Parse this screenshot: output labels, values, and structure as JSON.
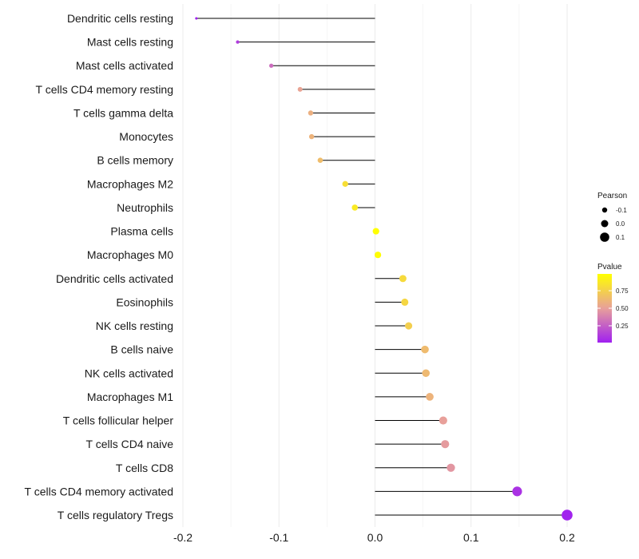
{
  "chart_data": {
    "type": "lollipop",
    "title": "",
    "xlabel": "",
    "ylabel": "",
    "xlim": [
      -0.2,
      0.2
    ],
    "x_ticks": [
      "-0.2",
      "-0.1",
      "0.0",
      "0.1",
      "0.2"
    ],
    "categories": [
      "Dendritic cells resting",
      "Mast cells resting",
      "Mast cells activated",
      "T cells CD4 memory resting",
      "T cells gamma delta",
      "Monocytes",
      "B cells memory",
      "Macrophages M2",
      "Neutrophils",
      "Plasma cells",
      "Macrophages M0",
      "Dendritic cells activated",
      "Eosinophils",
      "NK cells resting",
      "B cells naive",
      "NK cells activated",
      "Macrophages M1",
      "T cells follicular helper",
      "T cells CD4 naive",
      "T cells CD8",
      "T cells CD4 memory activated",
      "T cells regulatory  Tregs"
    ],
    "pearson": [
      -0.186,
      -0.143,
      -0.108,
      -0.078,
      -0.067,
      -0.066,
      -0.057,
      -0.031,
      -0.021,
      0.001,
      0.003,
      0.029,
      0.031,
      0.035,
      0.052,
      0.053,
      0.057,
      0.071,
      0.073,
      0.079,
      0.148,
      0.2
    ],
    "pvalue": [
      0.01,
      0.12,
      0.3,
      0.52,
      0.58,
      0.6,
      0.65,
      0.82,
      0.88,
      0.99,
      0.98,
      0.8,
      0.78,
      0.74,
      0.64,
      0.63,
      0.6,
      0.5,
      0.48,
      0.46,
      0.08,
      0.02
    ],
    "legend": {
      "size_title": "Pearson",
      "size_labels": [
        "-0.1",
        "0.0",
        "0.1"
      ],
      "size_values": [
        -0.1,
        0.0,
        0.1
      ],
      "color_title": "Pvalue",
      "color_labels": [
        "0.75",
        "0.50",
        "0.25"
      ],
      "color_values": [
        0.75,
        0.5,
        0.25
      ],
      "color_range": [
        0.01,
        0.99
      ],
      "color_low": "#a020f0",
      "color_mid": "#e8a09a",
      "color_high": "#ffff00",
      "placement": "right"
    },
    "colors": {
      "stem": "#000000",
      "grid": "#ebebeb",
      "text": "#1a1a1a"
    }
  }
}
